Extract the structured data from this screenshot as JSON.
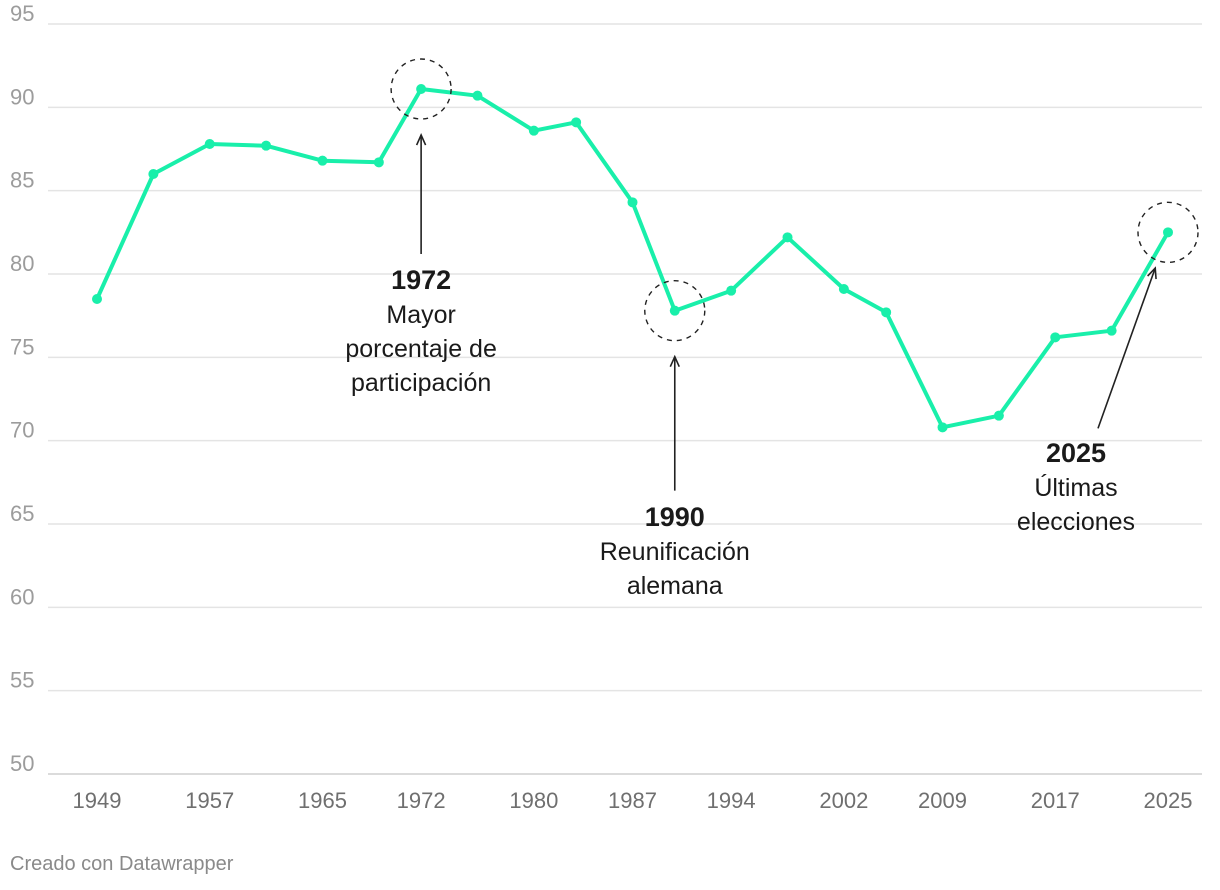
{
  "chart_data": {
    "type": "line",
    "title": "",
    "xlabel": "",
    "ylabel": "",
    "ylim": [
      50,
      95
    ],
    "y_ticks": [
      "50",
      "55",
      "60",
      "65",
      "70",
      "75",
      "80",
      "85",
      "90",
      "95"
    ],
    "x_tick_labels": [
      "1949",
      "1957",
      "1965",
      "1972",
      "1980",
      "1987",
      "1994",
      "2002",
      "2009",
      "2017",
      "2025"
    ],
    "grid": true,
    "legend": "none",
    "color": "#19efaa",
    "series": [
      {
        "x": [
          1949,
          1953,
          1957,
          1961,
          1965,
          1969,
          1972,
          1976,
          1980,
          1983,
          1987,
          1990,
          1994,
          1998,
          2002,
          2005,
          2009,
          2013,
          2017,
          2021,
          2025
        ],
        "values": [
          78.5,
          86.0,
          87.8,
          87.7,
          86.8,
          86.7,
          91.1,
          90.7,
          88.6,
          89.1,
          84.3,
          77.8,
          79.0,
          82.2,
          79.1,
          77.7,
          70.8,
          71.5,
          76.2,
          76.6,
          82.5
        ]
      }
    ],
    "annotations": [
      {
        "x": 1972,
        "y": 91.1,
        "year": "1972",
        "lines": [
          "Mayor",
          "porcentaje de",
          "participación"
        ]
      },
      {
        "x": 1990,
        "y": 77.8,
        "year": "1990",
        "lines": [
          "Reunificación",
          "alemana"
        ]
      },
      {
        "x": 2025,
        "y": 82.5,
        "year": "2025",
        "lines": [
          "Últimas",
          "elecciones"
        ]
      }
    ]
  },
  "credit": "Creado con Datawrapper"
}
